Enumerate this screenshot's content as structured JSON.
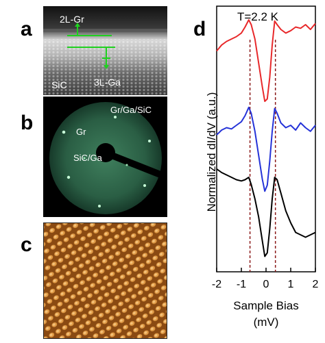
{
  "panels": {
    "a": {
      "letter": "a",
      "labels": {
        "top": "2L-Gr",
        "bottom": "3L-Ga",
        "substrate": "SiC"
      }
    },
    "b": {
      "letter": "b",
      "labels": {
        "top_right": "Gr/Ga/SiC",
        "left": "Gr",
        "center": "SiC/Ga"
      }
    },
    "c": {
      "letter": "c"
    },
    "d": {
      "letter": "d"
    }
  },
  "chart_data": {
    "type": "line",
    "title": "T=2.2 K",
    "xlabel": "Sample Bias",
    "xunit": "(mV)",
    "ylabel": "Normalized dI/dV (a.u.)",
    "xlim": [
      -2,
      2
    ],
    "xticks": [
      "-2",
      "-1",
      "0",
      "1",
      "2"
    ],
    "colors": {
      "top": "#e8282a",
      "middle": "#2533d8",
      "bottom": "#000000",
      "guides": "#8b1a1a"
    },
    "guide_lines_x": [
      -0.65,
      0.38
    ],
    "series": [
      {
        "color": "red",
        "x": [
          -2.0,
          -1.8,
          -1.6,
          -1.4,
          -1.2,
          -1.0,
          -0.85,
          -0.7,
          -0.6,
          -0.45,
          -0.3,
          -0.15,
          -0.05,
          0.05,
          0.15,
          0.25,
          0.35,
          0.45,
          0.6,
          0.8,
          1.0,
          1.2,
          1.4,
          1.6,
          1.8,
          2.0
        ],
        "y": [
          0.8,
          0.85,
          0.88,
          0.9,
          0.92,
          0.95,
          1.0,
          1.06,
          1.02,
          0.9,
          0.7,
          0.5,
          0.38,
          0.4,
          0.58,
          0.85,
          1.05,
          1.02,
          0.98,
          0.95,
          0.97,
          1.0,
          0.99,
          1.02,
          0.98,
          1.03
        ]
      },
      {
        "color": "blue",
        "x": [
          -2.0,
          -1.8,
          -1.6,
          -1.4,
          -1.2,
          -1.0,
          -0.85,
          -0.7,
          -0.6,
          -0.45,
          -0.3,
          -0.15,
          -0.05,
          0.05,
          0.15,
          0.25,
          0.35,
          0.45,
          0.6,
          0.8,
          1.0,
          1.2,
          1.4,
          1.6,
          1.8,
          2.0
        ],
        "y": [
          0.82,
          0.86,
          0.88,
          0.87,
          0.9,
          0.93,
          0.98,
          1.05,
          1.0,
          0.85,
          0.65,
          0.45,
          0.35,
          0.4,
          0.6,
          0.85,
          1.04,
          1.0,
          0.92,
          0.88,
          0.9,
          0.86,
          0.92,
          0.88,
          0.85,
          0.9
        ]
      },
      {
        "color": "black",
        "x": [
          -2.0,
          -1.8,
          -1.6,
          -1.4,
          -1.2,
          -1.0,
          -0.85,
          -0.7,
          -0.6,
          -0.45,
          -0.3,
          -0.15,
          -0.05,
          0.05,
          0.15,
          0.25,
          0.35,
          0.45,
          0.6,
          0.8,
          1.0,
          1.2,
          1.4,
          1.6,
          1.8,
          2.0
        ],
        "y": [
          1.05,
          1.02,
          1.0,
          0.98,
          0.96,
          0.95,
          0.96,
          0.98,
          0.92,
          0.8,
          0.65,
          0.45,
          0.32,
          0.35,
          0.55,
          0.8,
          0.98,
          0.96,
          0.85,
          0.7,
          0.6,
          0.52,
          0.5,
          0.48,
          0.5,
          0.52
        ]
      }
    ]
  }
}
